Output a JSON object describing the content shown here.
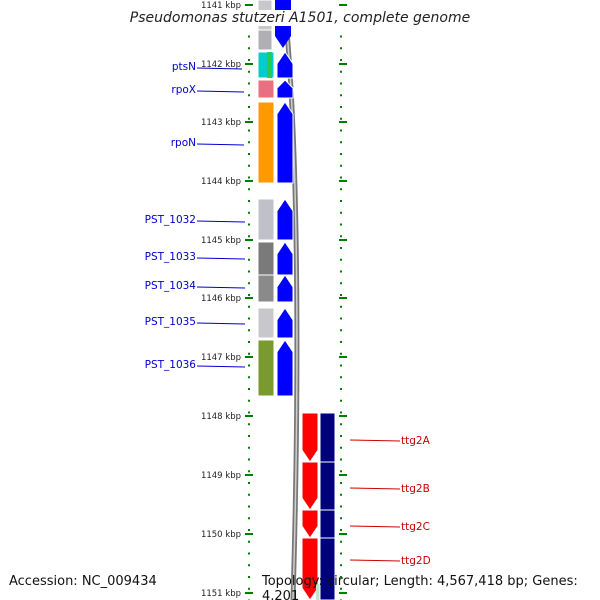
{
  "title": "Pseudomonas stutzeri A1501, complete genome",
  "footer": {
    "accession": "Accession: NC_009434",
    "stats": "Topology: circular; Length: 4,567,418 bp; Genes: 4,201"
  },
  "ruler": {
    "labels": [
      "1141 kbp",
      "1142 kbp",
      "1143 kbp",
      "1144 kbp",
      "1145 kbp",
      "1146 kbp",
      "1147 kbp",
      "1148 kbp",
      "1149 kbp",
      "1150 kbp",
      "1151 kbp"
    ]
  },
  "colors": {
    "forward_arrow": "#0000ff",
    "reverse_arrow": "#00007f",
    "forward_label": "#0000cc",
    "reverse_label": "#cc0000",
    "reverse_gene": "#ff0000",
    "track_tick": "#007f00",
    "backbone": "#777777"
  },
  "genes_forward": [
    {
      "label": "ptsN",
      "color": "#00cccc"
    },
    {
      "label": "rpoX",
      "color": "#e87080"
    },
    {
      "label": "rpoN",
      "color": "#ff9900"
    },
    {
      "label": "PST_1032",
      "color": "#c0c0c8"
    },
    {
      "label": "PST_1033",
      "color": "#7a7a7a"
    },
    {
      "label": "PST_1034",
      "color": "#8a8a8a"
    },
    {
      "label": "PST_1035",
      "color": "#c8c8cc"
    },
    {
      "label": "PST_1036",
      "color": "#7a9a30"
    }
  ],
  "genes_reverse": [
    {
      "label": "ttg2A",
      "color": "#ff0000"
    },
    {
      "label": "ttg2B",
      "color": "#ff0000"
    },
    {
      "label": "ttg2C",
      "color": "#ff0000"
    },
    {
      "label": "ttg2D",
      "color": "#ff0000"
    }
  ]
}
